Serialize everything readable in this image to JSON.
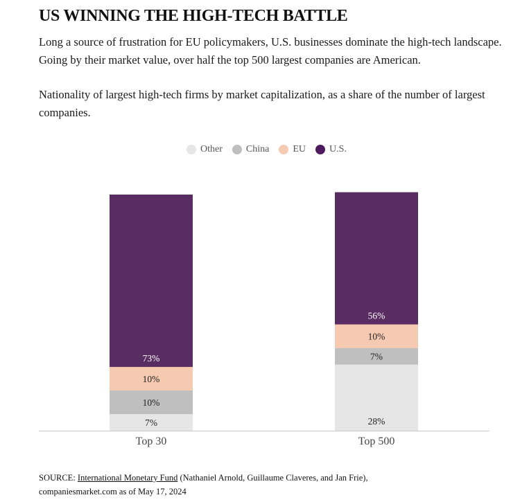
{
  "header": {
    "title": "US WINNING THE HIGH-TECH BATTLE",
    "subtitle": "Long a source of frustration for EU policymakers, U.S. businesses dominate the high-tech landscape. Going by their market value, over half the top 500 largest companies are American.",
    "description": "Nationality of largest high-tech firms by market capitalization, as a share of the number of largest companies."
  },
  "legend": [
    {
      "name": "Other",
      "color": "#e6e6e6"
    },
    {
      "name": "China",
      "color": "#bfbfbf"
    },
    {
      "name": "EU",
      "color": "#f6c9b1"
    },
    {
      "name": "U.S.",
      "color": "#4d1b5e"
    }
  ],
  "chart_data": {
    "type": "bar",
    "stacked": true,
    "title": "Nationality of largest high-tech firms by market capitalization, as a share of the number of largest companies.",
    "xlabel": "",
    "ylabel": "",
    "categories": [
      "Top 30",
      "Top 500"
    ],
    "series": [
      {
        "name": "Other",
        "color": "#e6e6e6",
        "label_color": "#222222",
        "values": [
          7,
          28
        ]
      },
      {
        "name": "China",
        "color": "#bfbfbf",
        "label_color": "#222222",
        "values": [
          10,
          7
        ]
      },
      {
        "name": "EU",
        "color": "#f6c9b1",
        "label_color": "#222222",
        "values": [
          10,
          10
        ]
      },
      {
        "name": "U.S.",
        "color": "#5a2d62",
        "label_color": "#ffffff",
        "values": [
          73,
          56
        ]
      }
    ],
    "value_suffix": "%",
    "ylim": [
      0,
      101
    ],
    "grid": false,
    "legend_position": "top-center"
  },
  "source": {
    "prefix": "SOURCE: ",
    "link_text": "International Monetary Fund",
    "rest": " (Nathaniel Arnold, Guillaume Claveres, and Jan Frie),",
    "line2": "companiesmarket.com as of May 17, 2024"
  }
}
